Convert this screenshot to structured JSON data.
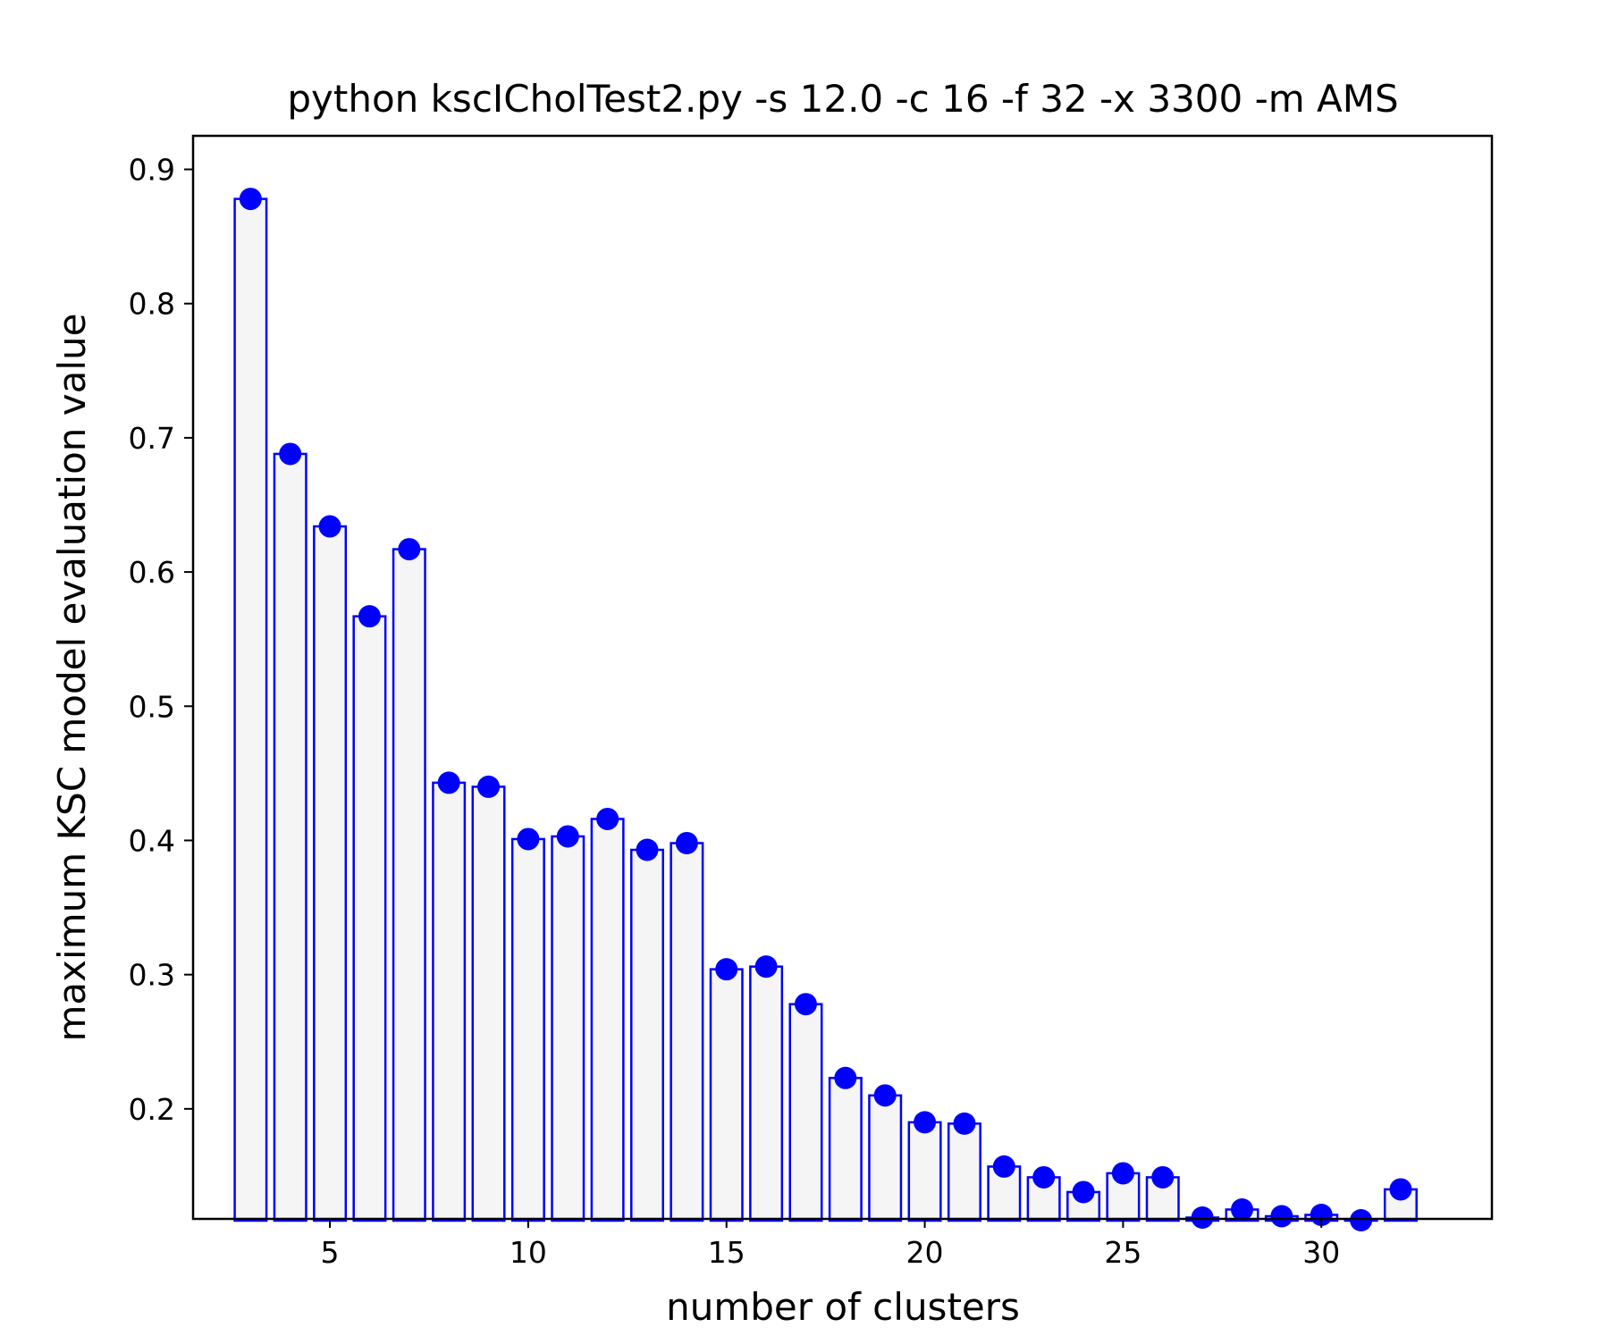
{
  "chart_data": {
    "type": "bar",
    "title": "python kscICholTest2.py -s 12.0 -c 16 -f 32 -x 3300 -m AMS",
    "xlabel": "number of clusters",
    "ylabel": "maximum KSC model evaluation value",
    "x": [
      3,
      4,
      5,
      6,
      7,
      8,
      9,
      10,
      11,
      12,
      13,
      14,
      15,
      16,
      17,
      18,
      19,
      20,
      21,
      22,
      23,
      24,
      25,
      26,
      27,
      28,
      29,
      30,
      31,
      32
    ],
    "values": [
      0.878,
      0.688,
      0.634,
      0.567,
      0.617,
      0.443,
      0.44,
      0.401,
      0.403,
      0.416,
      0.393,
      0.398,
      0.304,
      0.306,
      0.278,
      0.223,
      0.21,
      0.19,
      0.189,
      0.157,
      0.149,
      0.138,
      0.152,
      0.149,
      0.119,
      0.125,
      0.12,
      0.121,
      0.117,
      0.14
    ],
    "xlim": [
      1.55,
      34.3
    ],
    "ylim": [
      0.118,
      0.925
    ],
    "xticks": [
      5,
      10,
      15,
      20,
      25,
      30
    ],
    "yticks": [
      0.2,
      0.3,
      0.4,
      0.5,
      0.6,
      0.7,
      0.8,
      0.9
    ],
    "grid": false,
    "colors": {
      "bar_fill": "#f5f5f5",
      "bar_edge": "#0000ff",
      "marker": "#0000ff",
      "axes": "#000000"
    }
  }
}
